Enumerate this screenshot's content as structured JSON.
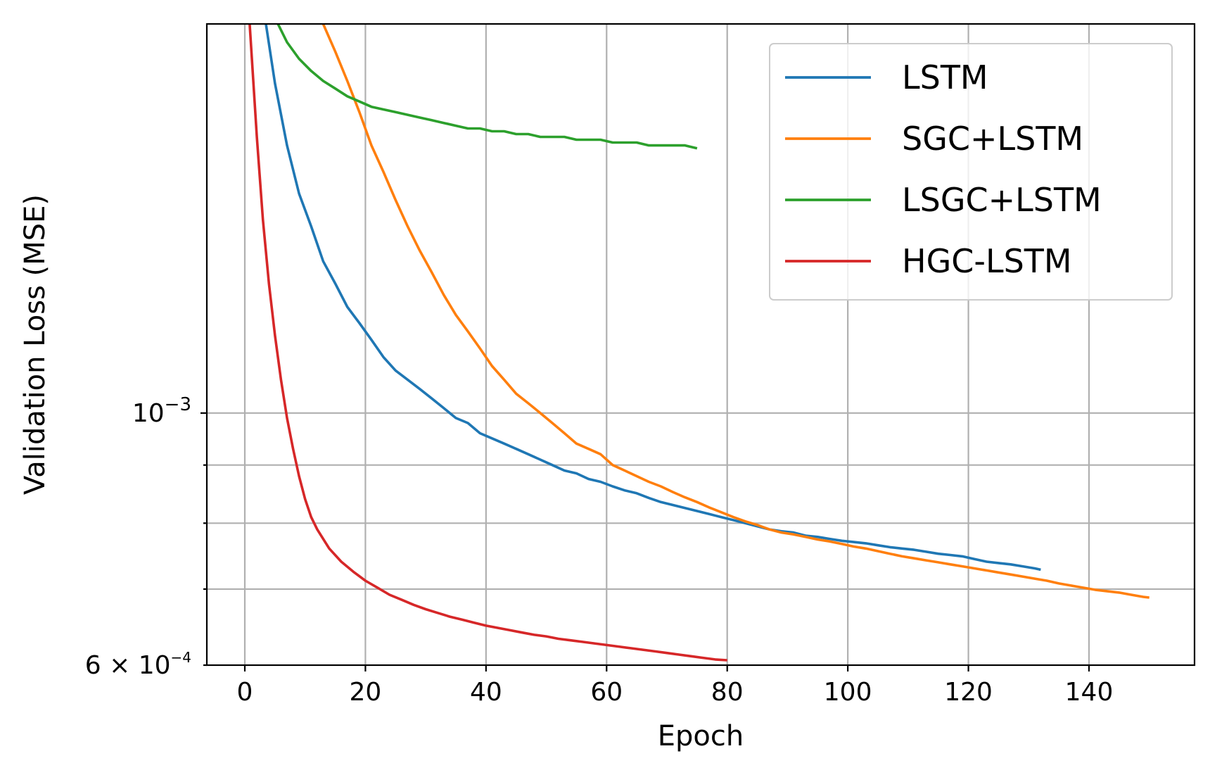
{
  "chart_data": {
    "type": "line",
    "xlabel": "Epoch",
    "ylabel": "Validation Loss (MSE)",
    "yscale": "log",
    "xlim": [
      -6.3,
      157.5
    ],
    "ylim": [
      0.0006,
      0.0022
    ],
    "xticks": [
      {
        "value": 0,
        "label": "0"
      },
      {
        "value": 20,
        "label": "20"
      },
      {
        "value": 40,
        "label": "40"
      },
      {
        "value": 60,
        "label": "60"
      },
      {
        "value": 80,
        "label": "80"
      },
      {
        "value": 100,
        "label": "100"
      },
      {
        "value": 120,
        "label": "120"
      },
      {
        "value": 140,
        "label": "140"
      }
    ],
    "yticks_major": [
      {
        "value": 0.001,
        "mantissa": "10",
        "exponent": "−3"
      }
    ],
    "yticks_minor": [
      {
        "value": 0.0006,
        "mantissa": "6 × 10",
        "exponent": "−4"
      },
      {
        "value": 0.0007,
        "mantissa": "",
        "exponent": ""
      },
      {
        "value": 0.0008,
        "mantissa": "",
        "exponent": ""
      },
      {
        "value": 0.0009,
        "mantissa": "",
        "exponent": ""
      }
    ],
    "grid": true,
    "legend_position": "top-right",
    "series": [
      {
        "name": "LSTM",
        "color": "#1f77b4",
        "points": [
          [
            3.5,
            0.0022
          ],
          [
            5,
            0.00195
          ],
          [
            7,
            0.00172
          ],
          [
            9,
            0.00156
          ],
          [
            11,
            0.00146
          ],
          [
            13,
            0.00136
          ],
          [
            15,
            0.0013
          ],
          [
            17,
            0.00124
          ],
          [
            19,
            0.0012
          ],
          [
            21,
            0.00116
          ],
          [
            23,
            0.00112
          ],
          [
            25,
            0.00109
          ],
          [
            27,
            0.00107
          ],
          [
            29,
            0.00105
          ],
          [
            31,
            0.00103
          ],
          [
            33,
            0.00101
          ],
          [
            35,
            0.00099
          ],
          [
            37,
            0.00098
          ],
          [
            39,
            0.00096
          ],
          [
            41,
            0.00095
          ],
          [
            43,
            0.00094
          ],
          [
            45,
            0.00093
          ],
          [
            47,
            0.00092
          ],
          [
            49,
            0.00091
          ],
          [
            51,
            0.0009
          ],
          [
            53,
            0.00089
          ],
          [
            55,
            0.000885
          ],
          [
            57,
            0.000875
          ],
          [
            59,
            0.00087
          ],
          [
            61,
            0.000862
          ],
          [
            63,
            0.000855
          ],
          [
            65,
            0.00085
          ],
          [
            67,
            0.000842
          ],
          [
            69,
            0.000835
          ],
          [
            71,
            0.00083
          ],
          [
            73,
            0.000825
          ],
          [
            75,
            0.00082
          ],
          [
            77,
            0.000815
          ],
          [
            79,
            0.00081
          ],
          [
            81,
            0.000805
          ],
          [
            83,
            0.0008
          ],
          [
            85,
            0.000795
          ],
          [
            87,
            0.00079
          ],
          [
            89,
            0.000787
          ],
          [
            91,
            0.000785
          ],
          [
            93,
            0.00078
          ],
          [
            95,
            0.000778
          ],
          [
            97,
            0.000775
          ],
          [
            99,
            0.000772
          ],
          [
            101,
            0.00077
          ],
          [
            103,
            0.000768
          ],
          [
            105,
            0.000765
          ],
          [
            107,
            0.000762
          ],
          [
            109,
            0.00076
          ],
          [
            111,
            0.000758
          ],
          [
            113,
            0.000755
          ],
          [
            115,
            0.000752
          ],
          [
            117,
            0.00075
          ],
          [
            119,
            0.000748
          ],
          [
            121,
            0.000744
          ],
          [
            123,
            0.00074
          ],
          [
            125,
            0.000738
          ],
          [
            127,
            0.000736
          ],
          [
            129,
            0.000733
          ],
          [
            131,
            0.00073
          ],
          [
            132,
            0.000728
          ]
        ]
      },
      {
        "name": "SGC+LSTM",
        "color": "#ff7f0e",
        "points": [
          [
            13,
            0.0022
          ],
          [
            15,
            0.00208
          ],
          [
            17,
            0.00196
          ],
          [
            19,
            0.00184
          ],
          [
            21,
            0.00172
          ],
          [
            23,
            0.00163
          ],
          [
            25,
            0.00154
          ],
          [
            27,
            0.00146
          ],
          [
            29,
            0.00139
          ],
          [
            31,
            0.00133
          ],
          [
            33,
            0.00127
          ],
          [
            35,
            0.00122
          ],
          [
            37,
            0.00118
          ],
          [
            39,
            0.00114
          ],
          [
            41,
            0.0011
          ],
          [
            43,
            0.00107
          ],
          [
            45,
            0.00104
          ],
          [
            47,
            0.00102
          ],
          [
            49,
            0.001
          ],
          [
            51,
            0.00098
          ],
          [
            53,
            0.00096
          ],
          [
            55,
            0.00094
          ],
          [
            57,
            0.00093
          ],
          [
            59,
            0.00092
          ],
          [
            61,
            0.0009
          ],
          [
            63,
            0.00089
          ],
          [
            65,
            0.00088
          ],
          [
            67,
            0.00087
          ],
          [
            69,
            0.000862
          ],
          [
            71,
            0.000852
          ],
          [
            73,
            0.000843
          ],
          [
            75,
            0.000835
          ],
          [
            77,
            0.000826
          ],
          [
            79,
            0.000818
          ],
          [
            81,
            0.00081
          ],
          [
            83,
            0.000803
          ],
          [
            85,
            0.000797
          ],
          [
            87,
            0.00079
          ],
          [
            89,
            0.000785
          ],
          [
            91,
            0.000782
          ],
          [
            93,
            0.000778
          ],
          [
            95,
            0.000774
          ],
          [
            97,
            0.000771
          ],
          [
            99,
            0.000767
          ],
          [
            101,
            0.000763
          ],
          [
            103,
            0.00076
          ],
          [
            105,
            0.000756
          ],
          [
            107,
            0.000752
          ],
          [
            109,
            0.000748
          ],
          [
            111,
            0.000745
          ],
          [
            113,
            0.000742
          ],
          [
            115,
            0.000739
          ],
          [
            117,
            0.000736
          ],
          [
            119,
            0.000733
          ],
          [
            121,
            0.00073
          ],
          [
            123,
            0.000727
          ],
          [
            125,
            0.000724
          ],
          [
            127,
            0.000721
          ],
          [
            129,
            0.000718
          ],
          [
            131,
            0.000715
          ],
          [
            133,
            0.000712
          ],
          [
            135,
            0.000708
          ],
          [
            137,
            0.000705
          ],
          [
            139,
            0.000702
          ],
          [
            141,
            0.000699
          ],
          [
            143,
            0.000697
          ],
          [
            145,
            0.000695
          ],
          [
            147,
            0.000692
          ],
          [
            149,
            0.000689
          ],
          [
            150,
            0.000688
          ]
        ]
      },
      {
        "name": "LSGC+LSTM",
        "color": "#2ca02c",
        "points": [
          [
            5.5,
            0.0022
          ],
          [
            7,
            0.00212
          ],
          [
            9,
            0.00205
          ],
          [
            11,
            0.002
          ],
          [
            13,
            0.00196
          ],
          [
            15,
            0.00193
          ],
          [
            17,
            0.0019
          ],
          [
            19,
            0.00188
          ],
          [
            21,
            0.00186
          ],
          [
            23,
            0.00185
          ],
          [
            25,
            0.00184
          ],
          [
            27,
            0.00183
          ],
          [
            29,
            0.00182
          ],
          [
            31,
            0.00181
          ],
          [
            33,
            0.0018
          ],
          [
            35,
            0.00179
          ],
          [
            37,
            0.00178
          ],
          [
            39,
            0.00178
          ],
          [
            41,
            0.00177
          ],
          [
            43,
            0.00177
          ],
          [
            45,
            0.00176
          ],
          [
            47,
            0.00176
          ],
          [
            49,
            0.00175
          ],
          [
            51,
            0.00175
          ],
          [
            53,
            0.00175
          ],
          [
            55,
            0.00174
          ],
          [
            57,
            0.00174
          ],
          [
            59,
            0.00174
          ],
          [
            61,
            0.00173
          ],
          [
            63,
            0.00173
          ],
          [
            65,
            0.00173
          ],
          [
            67,
            0.00172
          ],
          [
            69,
            0.00172
          ],
          [
            71,
            0.00172
          ],
          [
            73,
            0.00172
          ],
          [
            75,
            0.00171
          ]
        ]
      },
      {
        "name": "HGC-LSTM",
        "color": "#d62728",
        "points": [
          [
            0.8,
            0.0022
          ],
          [
            2,
            0.00175
          ],
          [
            3,
            0.00148
          ],
          [
            4,
            0.0013
          ],
          [
            5,
            0.00117
          ],
          [
            6,
            0.00107
          ],
          [
            7,
            0.00099
          ],
          [
            8,
            0.00093
          ],
          [
            9,
            0.00088
          ],
          [
            10,
            0.00084
          ],
          [
            11,
            0.00081
          ],
          [
            12,
            0.00079
          ],
          [
            14,
            0.00076
          ],
          [
            16,
            0.00074
          ],
          [
            18,
            0.000725
          ],
          [
            20,
            0.000712
          ],
          [
            22,
            0.000702
          ],
          [
            24,
            0.000692
          ],
          [
            26,
            0.000685
          ],
          [
            28,
            0.000678
          ],
          [
            30,
            0.000672
          ],
          [
            32,
            0.000667
          ],
          [
            34,
            0.000662
          ],
          [
            36,
            0.000658
          ],
          [
            38,
            0.000654
          ],
          [
            40,
            0.00065
          ],
          [
            42,
            0.000647
          ],
          [
            44,
            0.000644
          ],
          [
            46,
            0.000641
          ],
          [
            48,
            0.000638
          ],
          [
            50,
            0.000636
          ],
          [
            52,
            0.000633
          ],
          [
            54,
            0.000631
          ],
          [
            56,
            0.000629
          ],
          [
            58,
            0.000627
          ],
          [
            60,
            0.000625
          ],
          [
            62,
            0.000623
          ],
          [
            64,
            0.000621
          ],
          [
            66,
            0.000619
          ],
          [
            68,
            0.000617
          ],
          [
            70,
            0.000615
          ],
          [
            72,
            0.000613
          ],
          [
            74,
            0.000611
          ],
          [
            76,
            0.000609
          ],
          [
            78,
            0.000607
          ],
          [
            80,
            0.000606
          ]
        ]
      }
    ]
  }
}
